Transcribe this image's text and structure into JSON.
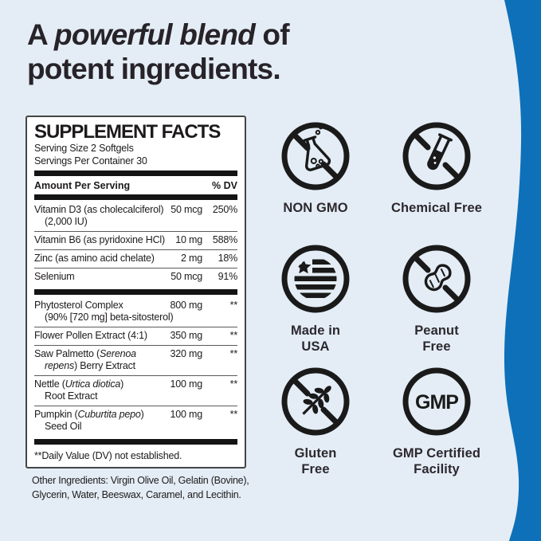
{
  "colors": {
    "background": "#e4edf5",
    "accent_blue": "#0e70b8",
    "panel_background": "#ffffff",
    "ink": "#1d1a1c"
  },
  "heading": {
    "prefix": "A ",
    "emphasis": "powerful blend",
    "suffix": " of",
    "line2": "potent ingredients."
  },
  "supplement_facts": {
    "title": "SUPPLEMENT FACTS",
    "serving_size": "Serving Size 2 Softgels",
    "servings_per_container": "Servings Per Container 30",
    "amount_header": "Amount Per Serving",
    "dv_header": "% DV",
    "rows": [
      {
        "group": 1,
        "line1": [
          [
            "Vitamin D3 (as cholecalciferol)",
            false
          ]
        ],
        "line2": [
          [
            "(2,000 IU)",
            false
          ]
        ],
        "amount": "50 mcg",
        "dv": "250%"
      },
      {
        "group": 1,
        "line1": [
          [
            "Vitamin B6 (as pyridoxine HCl)",
            false
          ]
        ],
        "amount": "10 mg",
        "dv": "588%"
      },
      {
        "group": 1,
        "line1": [
          [
            "Zinc (as amino acid chelate)",
            false
          ]
        ],
        "amount": "2 mg",
        "dv": "18%"
      },
      {
        "group": 1,
        "line1": [
          [
            "Selenium",
            false
          ]
        ],
        "amount": "50 mcg",
        "dv": "91%"
      },
      {
        "group": 2,
        "line1": [
          [
            "Phytosterol Complex",
            false
          ]
        ],
        "line2": [
          [
            "(90% [720 mg] beta-sitosterol)",
            false
          ]
        ],
        "amount": "800 mg",
        "dv": "**"
      },
      {
        "group": 2,
        "line1": [
          [
            "Flower Pollen Extract (4:1)",
            false
          ]
        ],
        "amount": "350 mg",
        "dv": "**"
      },
      {
        "group": 2,
        "line1": [
          [
            "Saw Palmetto (",
            false
          ],
          [
            "Serenoa",
            true
          ]
        ],
        "line2": [
          [
            "repens",
            true
          ],
          [
            ") Berry Extract",
            false
          ]
        ],
        "amount": "320 mg",
        "dv": "**"
      },
      {
        "group": 2,
        "line1": [
          [
            "Nettle (",
            false
          ],
          [
            "Urtica diotica",
            true
          ],
          [
            ")",
            false
          ]
        ],
        "line2": [
          [
            "Root Extract",
            false
          ]
        ],
        "amount": "100 mg",
        "dv": "**"
      },
      {
        "group": 2,
        "line1": [
          [
            "Pumpkin (",
            false
          ],
          [
            "Cuburtita pepo",
            true
          ],
          [
            ")",
            false
          ]
        ],
        "line2": [
          [
            "Seed Oil",
            false
          ]
        ],
        "amount": "100 mg",
        "dv": "**"
      }
    ],
    "footnote": "**Daily Value (DV) not established."
  },
  "other_ingredients": {
    "lines": [
      "Other Ingredients: Virgin Olive Oil, Gelatin (Bovine),",
      "Glycerin, Water, Beeswax, Caramel, and Lecithin."
    ]
  },
  "badges": [
    {
      "icon": "no-gmo-flask-icon",
      "lines": [
        "NON GMO"
      ]
    },
    {
      "icon": "no-chemical-test-tube-icon",
      "lines": [
        "Chemical Free"
      ]
    },
    {
      "icon": "usa-flag-icon",
      "lines": [
        "Made in",
        "USA"
      ]
    },
    {
      "icon": "no-peanut-icon",
      "lines": [
        "Peanut",
        "Free"
      ]
    },
    {
      "icon": "no-gluten-wheat-icon",
      "lines": [
        "Gluten",
        "Free"
      ]
    },
    {
      "icon": "gmp-badge-icon",
      "icon_text": "GMP",
      "lines": [
        "GMP Certified",
        "Facility"
      ]
    }
  ]
}
